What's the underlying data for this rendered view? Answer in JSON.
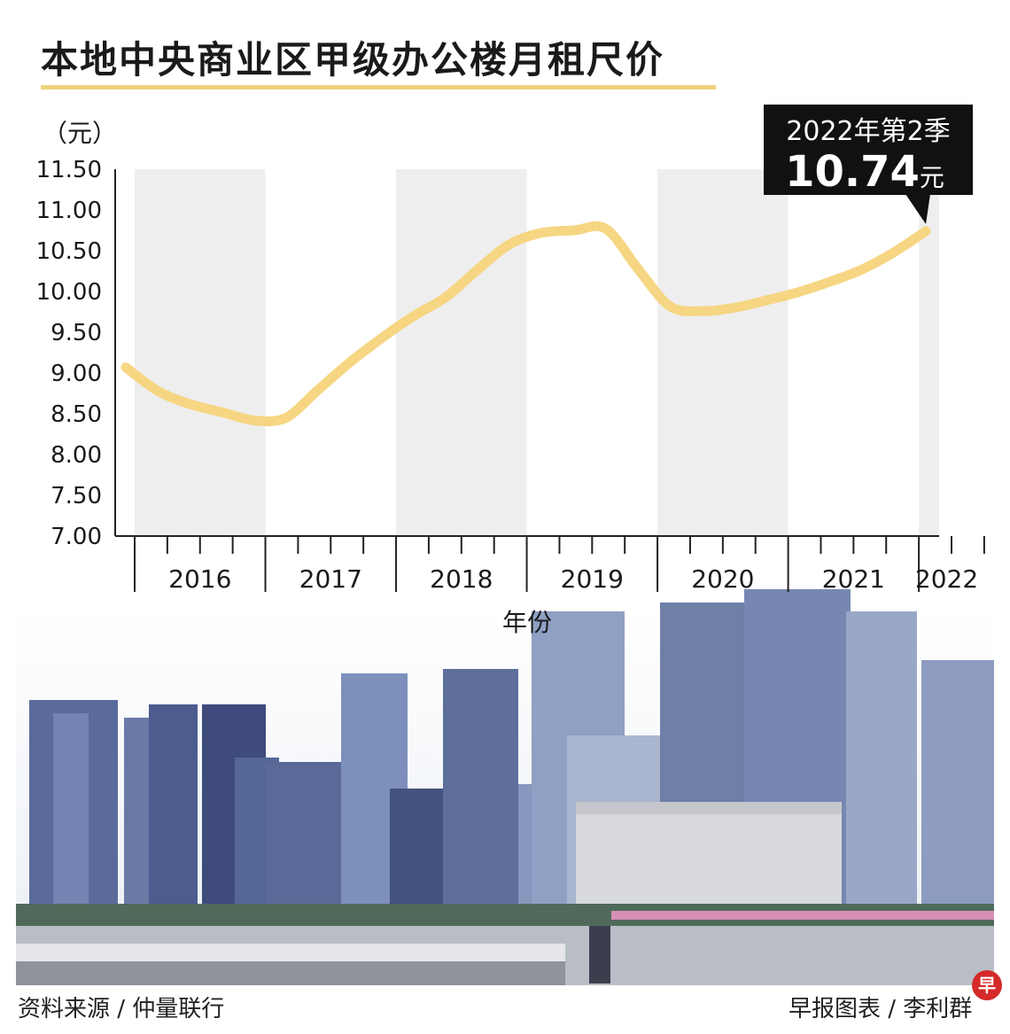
{
  "title": "本地中央商业区甲级办公楼月租尺价",
  "footer": {
    "source": "资料来源 / 仲量联行",
    "credit": "早报图表 / 李利群",
    "badge": "早"
  },
  "colors": {
    "line": "#f6d683",
    "band": "#eeeeee",
    "callout_bg": "#111111",
    "underline": "#f0d27a"
  },
  "chart_data": {
    "type": "line",
    "ylabel": "（元）",
    "xlabel": "年份",
    "ylim": [
      7.0,
      11.5
    ],
    "yticks": [
      "11.50",
      "11.00",
      "10.50",
      "10.00",
      "9.50",
      "9.00",
      "8.50",
      "8.00",
      "7.50",
      "7.00"
    ],
    "years": [
      "2016",
      "2017",
      "2018",
      "2019",
      "2020",
      "2021",
      "2022"
    ],
    "x": [
      "2016Q1",
      "2016Q2",
      "2016Q3",
      "2016Q4",
      "2017Q1",
      "2017Q2",
      "2017Q3",
      "2017Q4",
      "2018Q1",
      "2018Q2",
      "2018Q3",
      "2018Q4",
      "2019Q1",
      "2019Q2",
      "2019Q3",
      "2019Q4",
      "2020Q1",
      "2020Q2",
      "2020Q3",
      "2020Q4",
      "2021Q1",
      "2021Q2",
      "2021Q3",
      "2021Q4",
      "2022Q1",
      "2022Q2"
    ],
    "series": [
      {
        "values": [
          9.07,
          8.78,
          8.62,
          8.52,
          8.42,
          8.45,
          8.79,
          9.13,
          9.43,
          9.7,
          9.93,
          10.27,
          10.58,
          10.72,
          10.75,
          10.77,
          10.28,
          9.82,
          9.76,
          9.8,
          9.89,
          9.99,
          10.12,
          10.27,
          10.48,
          10.74
        ]
      }
    ],
    "grid": false,
    "callout": {
      "line1": "2022年第2季",
      "value": "10.74",
      "unit": "元"
    }
  }
}
